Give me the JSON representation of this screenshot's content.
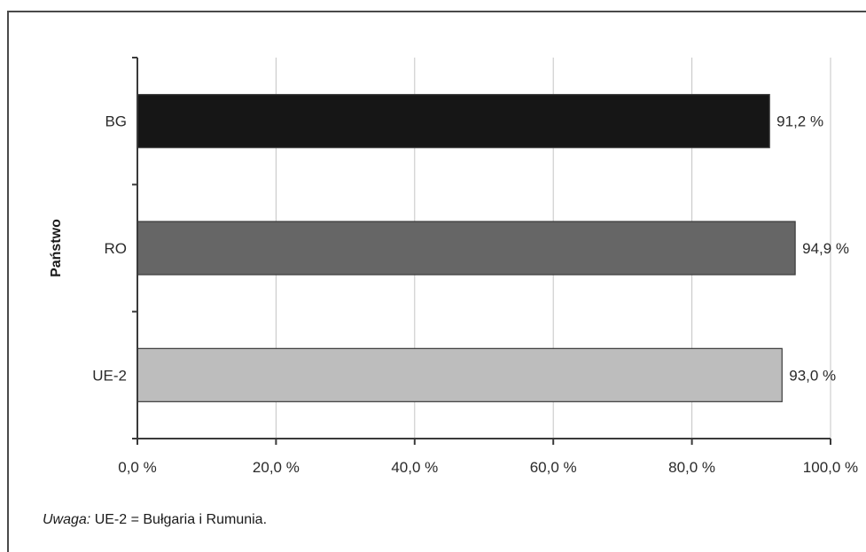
{
  "chart_data": {
    "type": "bar",
    "orientation": "horizontal",
    "ylabel": "Państwo",
    "xlabel": "",
    "categories": [
      "BG",
      "RO",
      "UE-2"
    ],
    "values": [
      91.2,
      94.9,
      93.0
    ],
    "data_labels": [
      "91,2 %",
      "94,9 %",
      "93,0 %"
    ],
    "xlim": [
      0,
      100
    ],
    "x_ticks": [
      0,
      20,
      40,
      60,
      80,
      100
    ],
    "x_tick_labels": [
      "0,0 %",
      "20,0 %",
      "40,0 %",
      "60,0 %",
      "80,0 %",
      "100,0 %"
    ],
    "bar_colors": [
      "#161616",
      "#666666",
      "#bdbdbd"
    ],
    "grid": "vertical",
    "legend": "none"
  },
  "note": {
    "prefix": "Uwaga:",
    "text": " UE-2 = Bułgaria i Rumunia."
  }
}
